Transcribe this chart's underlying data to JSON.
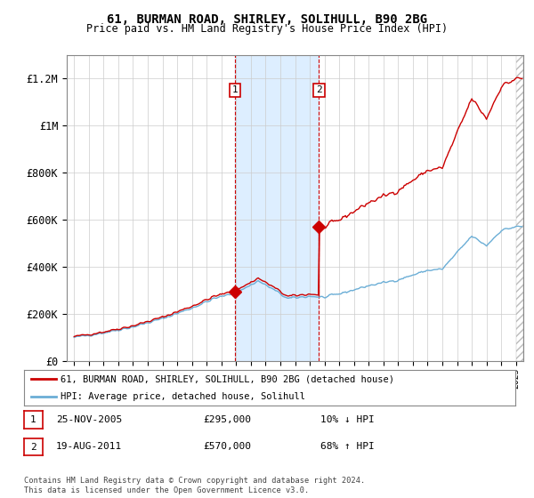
{
  "title": "61, BURMAN ROAD, SHIRLEY, SOLIHULL, B90 2BG",
  "subtitle": "Price paid vs. HM Land Registry's House Price Index (HPI)",
  "ylim": [
    0,
    1300000
  ],
  "yticks": [
    0,
    200000,
    400000,
    600000,
    800000,
    1000000,
    1200000
  ],
  "ytick_labels": [
    "£0",
    "£200K",
    "£400K",
    "£600K",
    "£800K",
    "£1M",
    "£1.2M"
  ],
  "sale1_year": 2005.917,
  "sale1_price": 295000,
  "sale2_year": 2011.625,
  "sale2_price": 570000,
  "sale1_date": "25-NOV-2005",
  "sale1_pct": "10% ↓ HPI",
  "sale2_date": "19-AUG-2011",
  "sale2_pct": "68% ↑ HPI",
  "legend_line1": "61, BURMAN ROAD, SHIRLEY, SOLIHULL, B90 2BG (detached house)",
  "legend_line2": "HPI: Average price, detached house, Solihull",
  "footer": "Contains HM Land Registry data © Crown copyright and database right 2024.\nThis data is licensed under the Open Government Licence v3.0.",
  "hpi_color": "#6baed6",
  "price_color": "#cc0000",
  "shade_color": "#ddeeff",
  "vline_color": "#cc0000",
  "hatch_color": "#bbbbbb"
}
